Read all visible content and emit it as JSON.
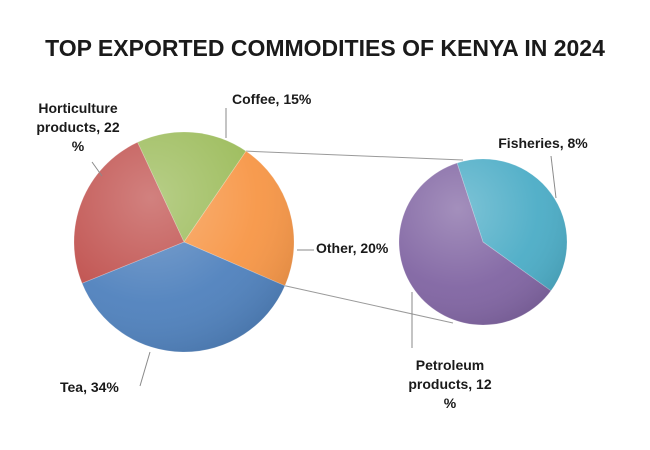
{
  "chart_data": {
    "type": "pie",
    "subtype": "pie-of-pie",
    "title": "TOP EXPORTED COMMODITIES OF KENYA IN 2024",
    "main_pie": [
      {
        "name": "Coffee",
        "value": 15,
        "label": [
          "Coffee, 15%"
        ],
        "color": "#9bbb59"
      },
      {
        "name": "Other",
        "value": 20,
        "label": [
          "Other, 20%"
        ],
        "color": "#f79646"
      },
      {
        "name": "Tea",
        "value": 34,
        "label": [
          "Tea, 34%"
        ],
        "color": "#4f81bd"
      },
      {
        "name": "Horticulture products",
        "value": 22,
        "label": [
          "Horticulture",
          "products, 22",
          "%"
        ],
        "color": "#c0504d"
      }
    ],
    "secondary_pie": [
      {
        "name": "Fisheries",
        "value": 8,
        "label": [
          "Fisheries, 8%"
        ],
        "color": "#4bacc6"
      },
      {
        "name": "Petroleum products",
        "value": 12,
        "label": [
          "Petroleum",
          "products, 12",
          "%"
        ],
        "color": "#8064a2"
      }
    ],
    "legend": "none"
  }
}
